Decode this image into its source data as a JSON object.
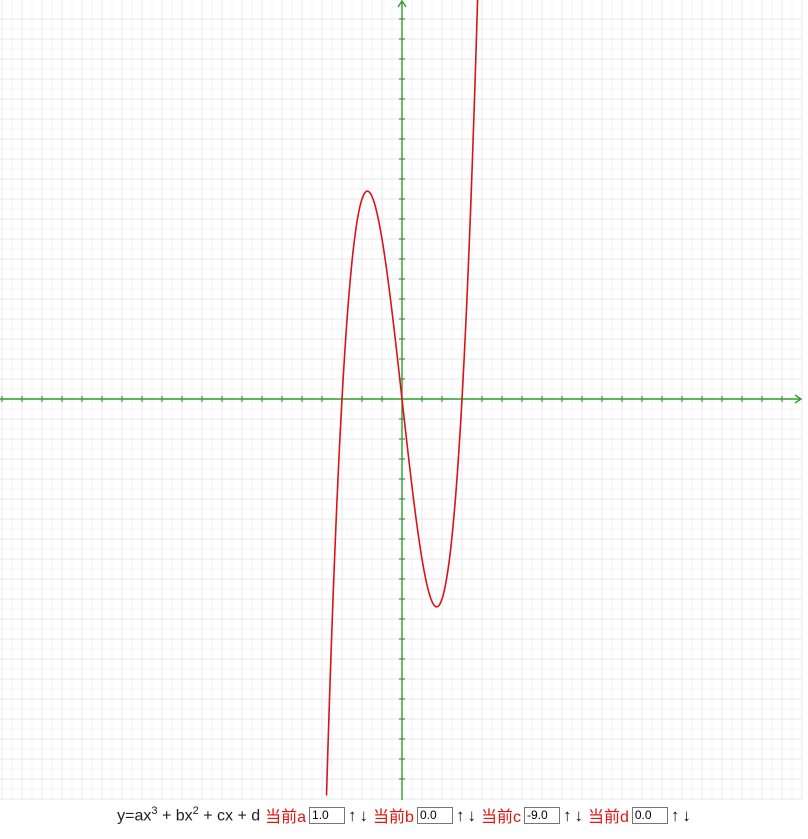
{
  "colors": {
    "background": "#ffffff",
    "grid": "#e8e8e8",
    "axis": "#2e9e2e",
    "curve": "#d8131a",
    "label": "#e0140f"
  },
  "chart_data": {
    "type": "line",
    "function": "cubic",
    "coefficients": {
      "a": 1.0,
      "b": 0.0,
      "c": -9.0,
      "d": 0.0
    },
    "xlim": [
      -20,
      20
    ],
    "ylim": [
      -20,
      20
    ],
    "grid": true,
    "axes_arrows": true
  },
  "controls": {
    "formula": {
      "p1": "y=ax",
      "e1": "3",
      "p2": " + bx",
      "e2": "2",
      "p3": " + cx + d"
    },
    "params": [
      {
        "label": "当前a",
        "value": "1.0",
        "up": "↑",
        "down": "↓"
      },
      {
        "label": "当前b",
        "value": "0.0",
        "up": "↑",
        "down": "↓"
      },
      {
        "label": "当前c",
        "value": "-9.0",
        "up": "↑",
        "down": "↓"
      },
      {
        "label": "当前d",
        "value": "0.0",
        "up": "↑",
        "down": "↓"
      }
    ]
  }
}
